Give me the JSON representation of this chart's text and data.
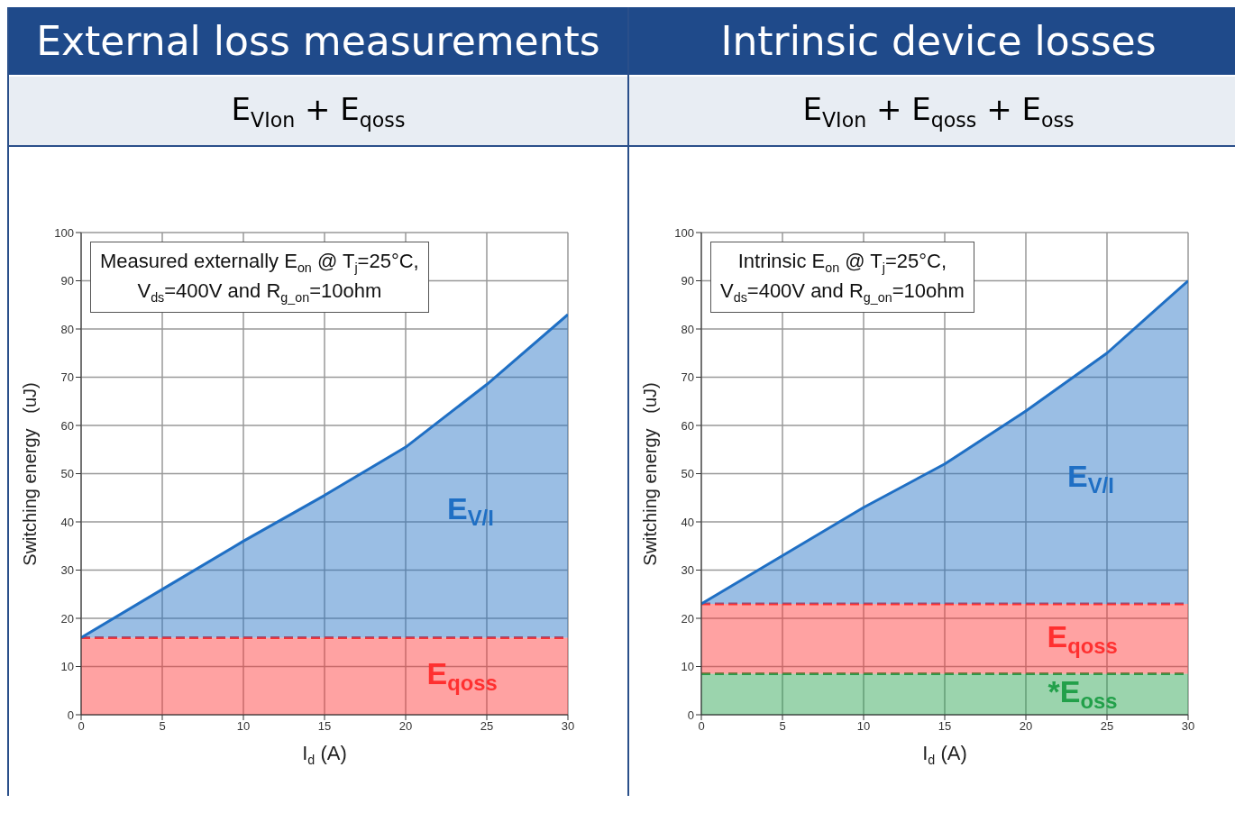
{
  "chart_data": [
    {
      "type": "area",
      "title": "External loss measurements",
      "subtitle": "E$_{VIon}$ + E$_{qoss}$",
      "xlabel": "I$_{d}$ (A)",
      "ylabel": "Switching energy   (uJ)",
      "annotations": [
        "Measured externally E$_{on}$ @ T$_{j}$=25°C,",
        "V$_{ds}$=400V and R$_{g_on}$=10ohm"
      ],
      "stacked": true,
      "x": [
        0,
        5,
        10,
        15,
        20,
        25,
        30
      ],
      "series": [
        {
          "name": "E$_{qoss}$",
          "color": "#ff3030",
          "line_style": "dashed",
          "values": [
            16,
            16,
            16,
            16,
            16,
            16,
            16
          ]
        },
        {
          "name": "E$_{V/I}$",
          "color": "#1f6fc4",
          "line_style": "solid",
          "values": [
            0,
            10,
            20,
            29.5,
            39.5,
            52.5,
            67
          ]
        }
      ],
      "xlim": [
        0,
        30
      ],
      "ylim": [
        0,
        100
      ],
      "xticks": [
        0,
        5,
        10,
        15,
        20,
        25,
        30
      ],
      "yticks": [
        0,
        10,
        20,
        30,
        40,
        50,
        60,
        70,
        80,
        90,
        100
      ],
      "grid": true
    },
    {
      "type": "area",
      "title": "Intrinsic device losses",
      "subtitle": "E$_{VIon}$ + E$_{qoss}$ + E$_{oss}$",
      "xlabel": "I$_{d}$ (A)",
      "ylabel": "Switching energy   (uJ)",
      "annotations": [
        "Intrinsic E$_{on}$ @ T$_{j}$=25°C,",
        "V$_{ds}$=400V and R$_{g_on}$=10ohm"
      ],
      "stacked": true,
      "x": [
        0,
        5,
        10,
        15,
        20,
        25,
        30
      ],
      "series": [
        {
          "name": "*E$_{oss}$",
          "color": "#22a04a",
          "line_style": "dashed",
          "values": [
            8.5,
            8.5,
            8.5,
            8.5,
            8.5,
            8.5,
            8.5
          ]
        },
        {
          "name": "E$_{qoss}$",
          "color": "#ff3030",
          "line_style": "dashed",
          "values": [
            14.5,
            14.5,
            14.5,
            14.5,
            14.5,
            14.5,
            14.5
          ]
        },
        {
          "name": "E$_{V/I}$",
          "color": "#1f6fc4",
          "line_style": "solid",
          "values": [
            0,
            10,
            20,
            29,
            40,
            52,
            67
          ]
        }
      ],
      "xlim": [
        0,
        30
      ],
      "ylim": [
        0,
        100
      ],
      "xticks": [
        0,
        5,
        10,
        15,
        20,
        25,
        30
      ],
      "yticks": [
        0,
        10,
        20,
        30,
        40,
        50,
        60,
        70,
        80,
        90,
        100
      ],
      "grid": true
    }
  ]
}
